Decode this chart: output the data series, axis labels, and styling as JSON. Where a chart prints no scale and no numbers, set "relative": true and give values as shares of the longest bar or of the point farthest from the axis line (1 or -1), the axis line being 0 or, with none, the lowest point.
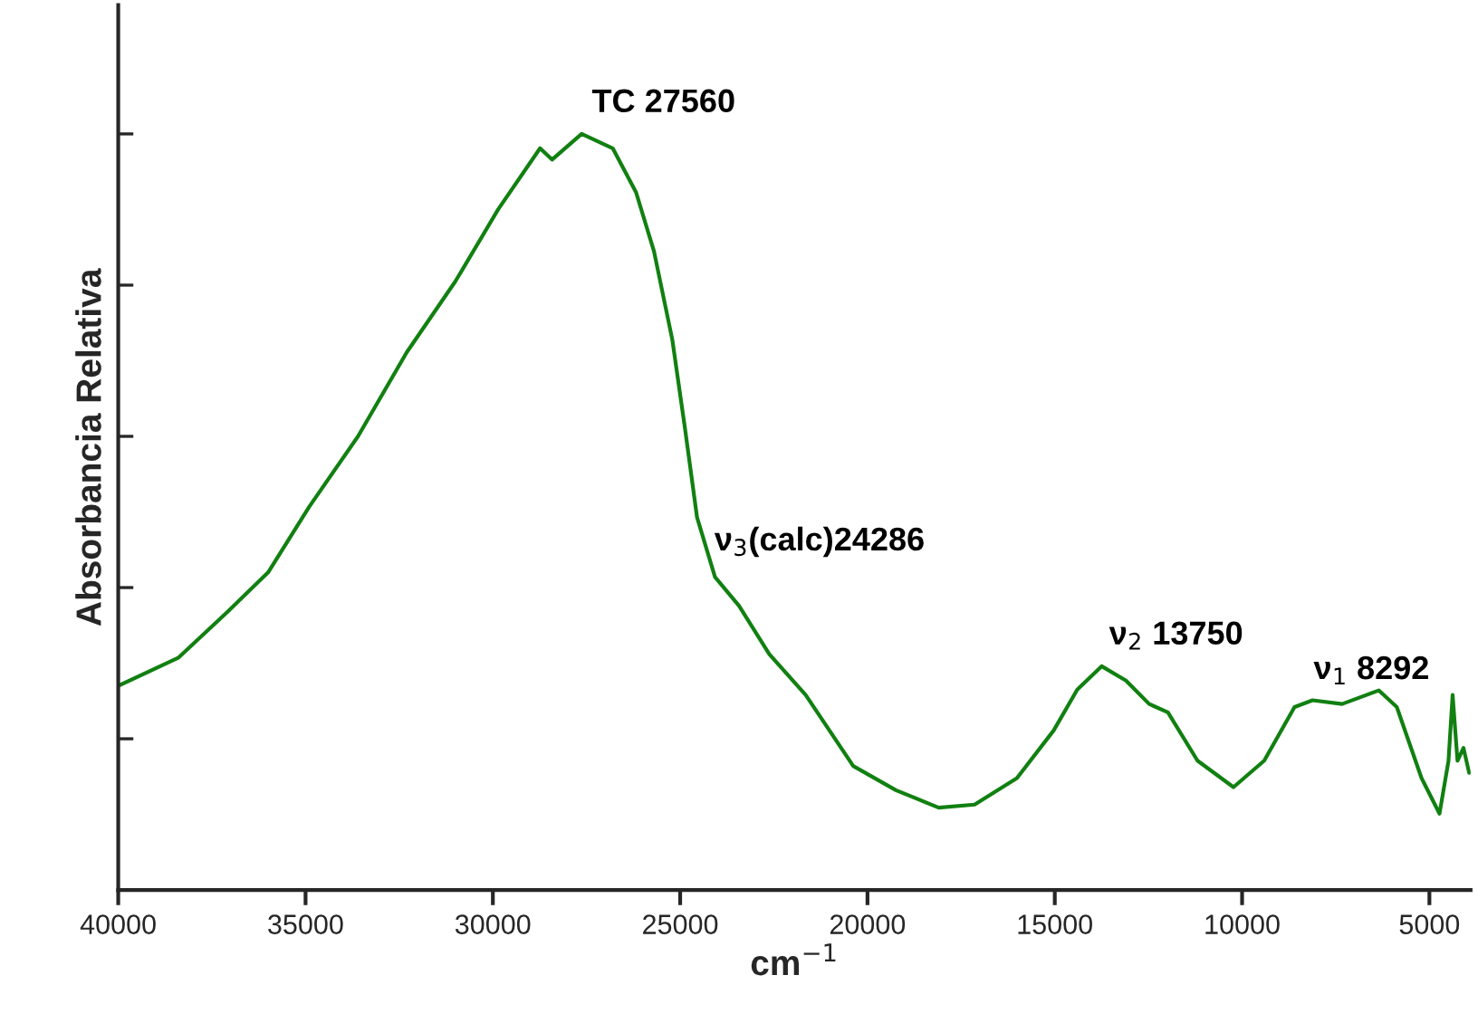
{
  "chart_data": {
    "type": "line",
    "xlabel": "cm$^{−1}$",
    "ylabel": "Absorbancia Relativa",
    "relative": true,
    "tick_labels": "x",
    "grid": false,
    "legend": false,
    "xlim": [
      40000,
      3900
    ],
    "xticks": [
      40000,
      35000,
      30000,
      25000,
      20000,
      15000,
      10000,
      5000
    ],
    "series": [
      {
        "color": "#118011",
        "x": [
          40000,
          38400,
          37100,
          36000,
          34900,
          33600,
          32300,
          31000,
          29860,
          28740,
          28420,
          27630,
          26800,
          26180,
          25700,
          25210,
          24870,
          24550,
          24070,
          23430,
          22620,
          21650,
          20380,
          19240,
          18100,
          17140,
          16010,
          15030,
          14400,
          13750,
          13100,
          12480,
          11980,
          11190,
          10230,
          9410,
          8600,
          8120,
          7330,
          6350,
          5870,
          5210,
          4730,
          4490,
          4380,
          4250,
          4090,
          3940
        ],
        "values": [
          0.27,
          0.307,
          0.367,
          0.42,
          0.507,
          0.6,
          0.711,
          0.805,
          0.9,
          0.981,
          0.966,
          1.0,
          0.981,
          0.923,
          0.845,
          0.728,
          0.61,
          0.493,
          0.414,
          0.376,
          0.312,
          0.258,
          0.164,
          0.132,
          0.109,
          0.113,
          0.148,
          0.211,
          0.265,
          0.296,
          0.277,
          0.246,
          0.235,
          0.171,
          0.136,
          0.171,
          0.242,
          0.251,
          0.246,
          0.264,
          0.242,
          0.148,
          0.101,
          0.171,
          0.258,
          0.171,
          0.188,
          0.155
        ]
      }
    ],
    "annotations": [
      {
        "text": "TC 27560",
        "x": 27560,
        "y": 1.0
      },
      {
        "text": "ν$_{3}$(calc)24286",
        "x": 24286,
        "y": 0.42
      },
      {
        "text": "ν$_{2}$ 13750",
        "x": 13750,
        "y": 0.296
      },
      {
        "text": "ν$_{1}$ 8292",
        "x": 8292,
        "y": 0.25
      }
    ]
  }
}
